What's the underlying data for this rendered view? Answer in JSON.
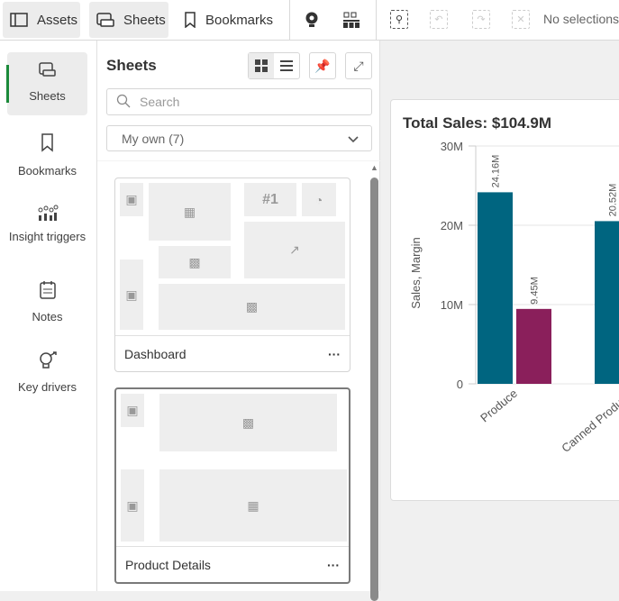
{
  "topbar": {
    "assets": "Assets",
    "sheets": "Sheets",
    "bookmarks": "Bookmarks",
    "selections": "No selections"
  },
  "rail": {
    "items": [
      {
        "label": "Sheets"
      },
      {
        "label": "Bookmarks"
      },
      {
        "label": "Insight triggers"
      },
      {
        "label": "Notes"
      },
      {
        "label": "Key drivers"
      }
    ]
  },
  "panel": {
    "title": "Sheets",
    "search_placeholder": "Search",
    "filter": "My own (7)",
    "sheets": [
      {
        "name": "Dashboard",
        "tiles": {
          "kpi": "#1"
        }
      },
      {
        "name": "Product Details"
      }
    ],
    "more": "···"
  },
  "chart_data": {
    "type": "bar",
    "title": "Total Sales: $104.9M",
    "ylabel": "Sales, Margin",
    "ylim": [
      0,
      30000000
    ],
    "yticks": [
      "0",
      "10M",
      "20M",
      "30M"
    ],
    "categories": [
      "Produce",
      "Canned Products"
    ],
    "series": [
      {
        "color": "#006580",
        "values": [
          24160000,
          20520000
        ],
        "labels": [
          "24.16M",
          "20.52M"
        ]
      },
      {
        "color": "#8a1f5b",
        "values": [
          9450000,
          null
        ],
        "labels": [
          "9.45M",
          ""
        ]
      }
    ],
    "grid": true
  }
}
